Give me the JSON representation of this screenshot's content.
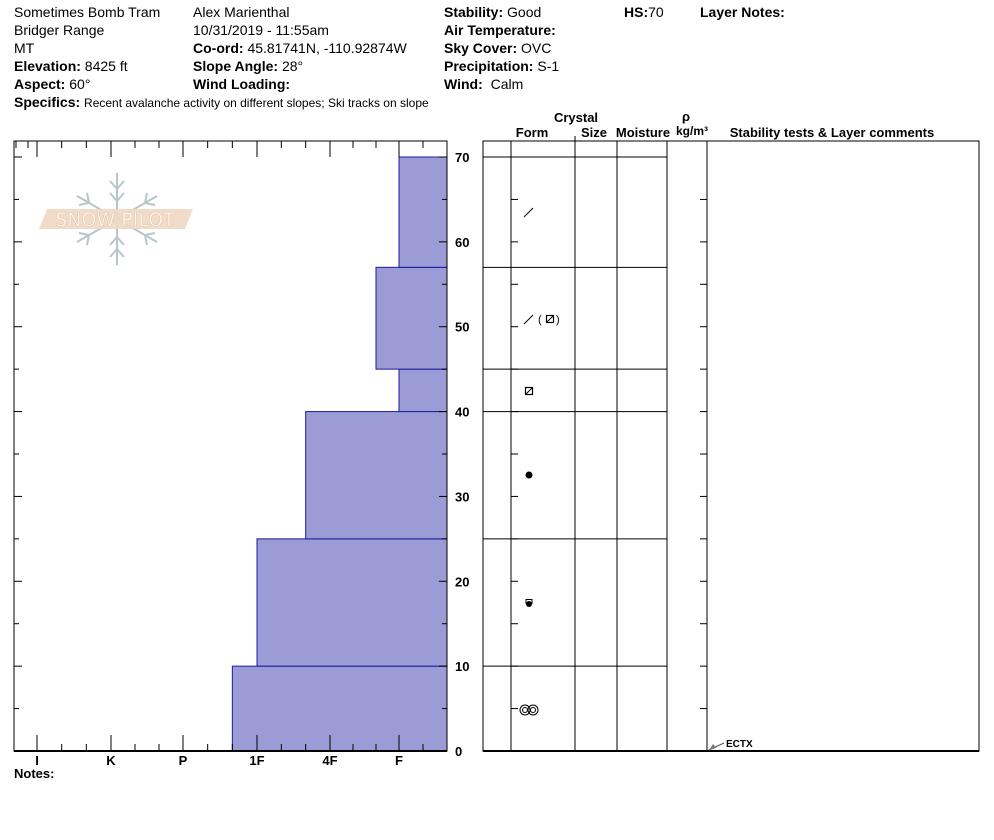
{
  "header": {
    "location": "Sometimes Bomb Tram",
    "range": "Bridger Range",
    "state": "MT",
    "elevation_label": "Elevation:",
    "elevation": "8425 ft",
    "aspect_label": "Aspect:",
    "aspect": "60°",
    "observer": "Alex Marienthal",
    "datetime": "10/31/2019 - 11:55am",
    "coord_label": "Co-ord:",
    "coord": "45.81741N, -110.92874W",
    "slope_label": "Slope Angle:",
    "slope": "28°",
    "wind_loading_label": "Wind Loading:",
    "stability_label": "Stability:",
    "stability": "Good",
    "air_temp_label": "Air Temperature:",
    "sky_label": "Sky Cover:",
    "sky": "OVC",
    "precip_label": "Precipitation:",
    "precip": "S-1",
    "wind_label": "Wind:",
    "wind": "Calm",
    "hs_label": "HS:",
    "hs": "70",
    "layer_notes_label": "Layer Notes:",
    "specifics_label": "Specifics:",
    "specifics": "Recent avalanche activity on different slopes;  Ski tracks on slope"
  },
  "logo": {
    "text": "SNOW PILOT"
  },
  "table_headers": {
    "crystal": "Crystal",
    "form": "Form",
    "size": "Size",
    "moisture": "Moisture",
    "rho": "ρ",
    "density_unit": "kg/m³",
    "comments": "Stability tests & Layer comments"
  },
  "notes_label": "Notes:",
  "chart_data": {
    "type": "snow-profile",
    "ylim": [
      0,
      70
    ],
    "y_ticks": [
      "0",
      "10",
      "20",
      "30",
      "40",
      "50",
      "60",
      "70"
    ],
    "hardness_ticks": [
      "I",
      "K",
      "P",
      "1F",
      "4F",
      "F"
    ],
    "bar_color": "#9b9bd6",
    "layers": [
      {
        "bottom": 0,
        "top": 10,
        "hardness": "1F-",
        "form": "MFcr"
      },
      {
        "bottom": 10,
        "top": 25,
        "hardness": "1F",
        "form": "RGxf"
      },
      {
        "bottom": 25,
        "top": 40,
        "hardness": "4F-",
        "form": "RG"
      },
      {
        "bottom": 40,
        "top": 45,
        "hardness": "F",
        "form": "FCxr"
      },
      {
        "bottom": 45,
        "top": 57,
        "hardness": "F-",
        "form": "DF (FCxr)"
      },
      {
        "bottom": 57,
        "top": 70,
        "hardness": "F",
        "form": "DF"
      }
    ],
    "tests": [
      {
        "depth": 0,
        "label": "ECTX"
      }
    ]
  }
}
